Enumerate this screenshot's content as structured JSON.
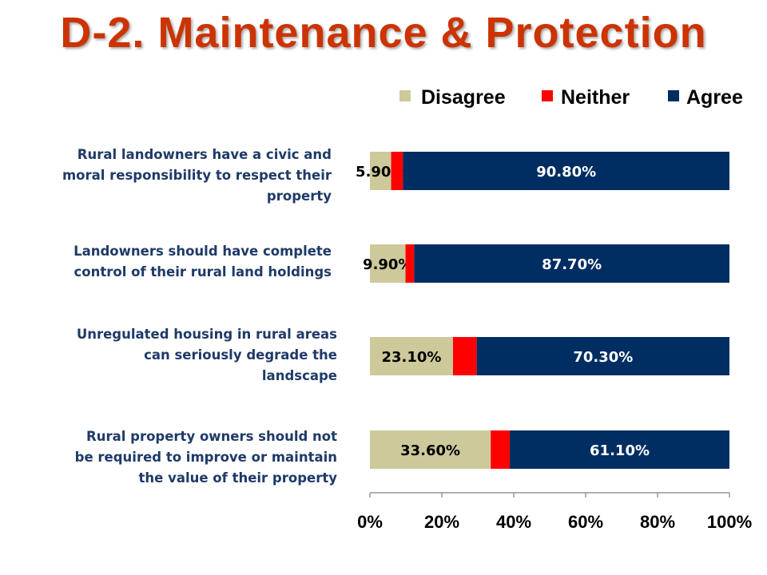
{
  "title": "D-2. Maintenance & Protection",
  "colors": {
    "title": "#cc3300",
    "label_text": "#1f3a68",
    "disagree": "#cdc99a",
    "neither": "#ff0000",
    "agree": "#002d62"
  },
  "chart_data": {
    "type": "bar",
    "orientation": "horizontal",
    "stacked": true,
    "categories": [
      "Rural landowners have a civic and\nmoral responsibility to respect their\nproperty",
      "Landowners should have complete\ncontrol of their rural land holdings",
      "Unregulated housing in rural areas\ncan seriously degrade the\nlandscape",
      "Rural property owners should not\nbe required to improve or maintain\nthe value of their property"
    ],
    "series": [
      {
        "name": "Disagree",
        "values": [
          5.9,
          9.9,
          23.1,
          33.6
        ],
        "labels": [
          "5.90%",
          "9.90%",
          "23.10%",
          "33.60%"
        ]
      },
      {
        "name": "Neither",
        "values": [
          3.3,
          2.4,
          6.6,
          5.3
        ],
        "labels": [
          "",
          "",
          "",
          ""
        ]
      },
      {
        "name": "Agree",
        "values": [
          90.8,
          87.7,
          70.3,
          61.1
        ],
        "labels": [
          "90.80%",
          "87.70%",
          "70.30%",
          "61.10%"
        ]
      }
    ],
    "xlim": [
      0,
      100
    ],
    "xticks": [
      "0%",
      "20%",
      "40%",
      "60%",
      "80%",
      "100%"
    ],
    "legend_position": "top-right",
    "grid": false
  }
}
